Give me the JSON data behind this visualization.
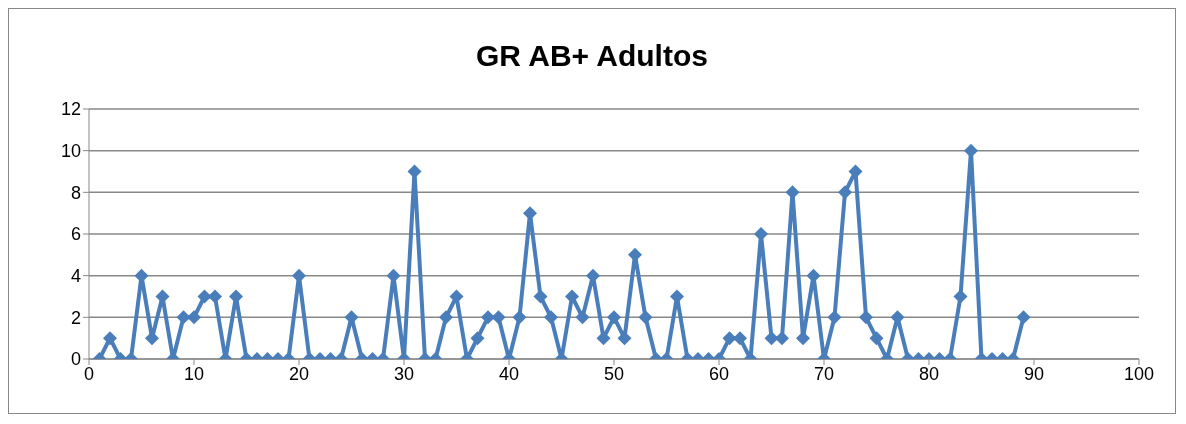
{
  "chart_data": {
    "type": "line",
    "title": "GR AB+ Adultos",
    "x": [
      1,
      2,
      3,
      4,
      5,
      6,
      7,
      8,
      9,
      10,
      11,
      12,
      13,
      14,
      15,
      16,
      17,
      18,
      19,
      20,
      21,
      22,
      23,
      24,
      25,
      26,
      27,
      28,
      29,
      30,
      31,
      32,
      33,
      34,
      35,
      36,
      37,
      38,
      39,
      40,
      41,
      42,
      43,
      44,
      45,
      46,
      47,
      48,
      49,
      50,
      51,
      52,
      53,
      54,
      55,
      56,
      57,
      58,
      59,
      60,
      61,
      62,
      63,
      64,
      65,
      66,
      67,
      68,
      69,
      70,
      71,
      72,
      73,
      74,
      75,
      76,
      77,
      78,
      79,
      80,
      81,
      82,
      83,
      84,
      85,
      86,
      87,
      88,
      89
    ],
    "values": [
      0,
      1,
      0,
      0,
      4,
      1,
      3,
      0,
      2,
      2,
      3,
      3,
      0,
      3,
      0,
      0,
      0,
      0,
      0,
      4,
      0,
      0,
      0,
      0,
      2,
      0,
      0,
      0,
      4,
      0,
      9,
      0,
      0,
      2,
      3,
      0,
      1,
      2,
      2,
      0,
      2,
      7,
      3,
      2,
      0,
      3,
      2,
      4,
      1,
      2,
      1,
      5,
      2,
      0,
      0,
      3,
      0,
      0,
      0,
      0,
      1,
      1,
      0,
      6,
      1,
      1,
      8,
      1,
      4,
      0,
      2,
      8,
      9,
      2,
      1,
      0,
      2,
      0,
      0,
      0,
      0,
      0,
      3,
      10,
      0,
      0,
      0,
      0,
      2
    ],
    "color": "#4a7ebb",
    "xlim": [
      0,
      100
    ],
    "xticks": [
      0,
      10,
      20,
      30,
      40,
      50,
      60,
      70,
      80,
      90,
      100
    ],
    "ylim": [
      0,
      12
    ],
    "yticks": [
      0,
      2,
      4,
      6,
      8,
      10,
      12
    ],
    "grid": "y",
    "marker": "diamond",
    "line_style": "solid"
  }
}
